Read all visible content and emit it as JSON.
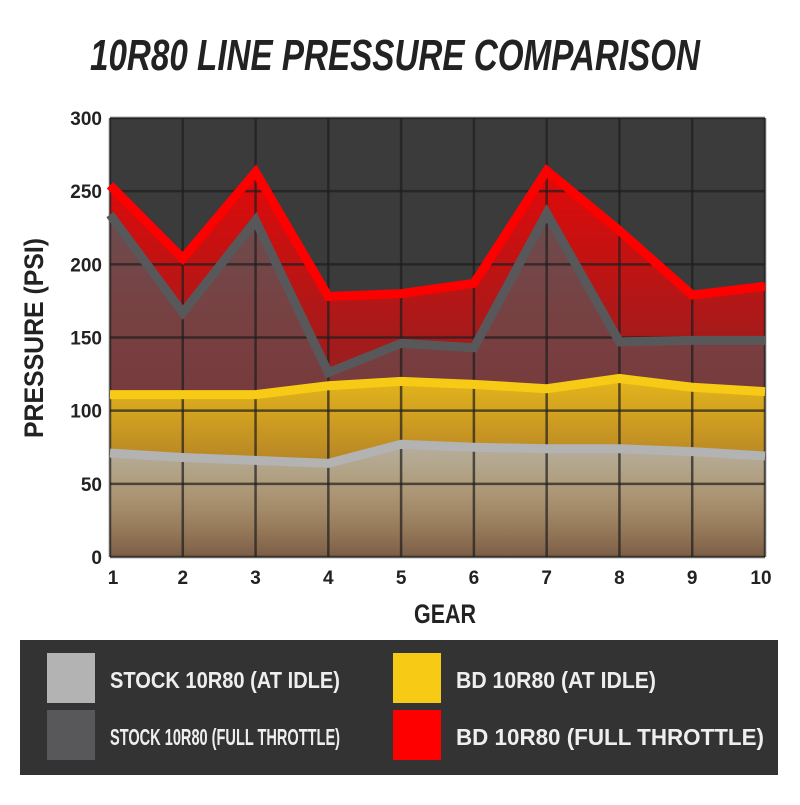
{
  "chart_data": {
    "type": "area",
    "title": "10R80 LINE PRESSURE COMPARISON",
    "x_label": "GEAR",
    "y_label": "PRESSURE (PSI)",
    "x": [
      1,
      2,
      3,
      4,
      5,
      6,
      7,
      8,
      9,
      10
    ],
    "xlim": [
      1,
      10
    ],
    "xticks": [
      1,
      2,
      3,
      4,
      5,
      6,
      7,
      8,
      9,
      10
    ],
    "ylim": [
      0,
      300
    ],
    "yticks": [
      0,
      50,
      100,
      150,
      200,
      250,
      300
    ],
    "grid": true,
    "legend": "bottom",
    "series": [
      {
        "name": "BD 10R80 (FULL THROTTLE)",
        "color": "#ff0000",
        "values": [
          254,
          204,
          263,
          178,
          180,
          187,
          264,
          223,
          179,
          185
        ]
      },
      {
        "name": "STOCK 10R80 (FULL THROTTLE)",
        "color": "#58585a",
        "values": [
          234,
          167,
          230,
          126,
          146,
          143,
          235,
          147,
          148,
          148
        ]
      },
      {
        "name": "BD 10R80 (AT IDLE)",
        "color": "#f7cb15",
        "values": [
          111,
          111,
          111,
          117,
          120,
          118,
          115,
          122,
          116,
          113
        ]
      },
      {
        "name": "STOCK 10R80 (AT IDLE)",
        "color": "#b3b3b3",
        "values": [
          71,
          68,
          66,
          64,
          77,
          75,
          74,
          74,
          72,
          69
        ]
      }
    ]
  }
}
